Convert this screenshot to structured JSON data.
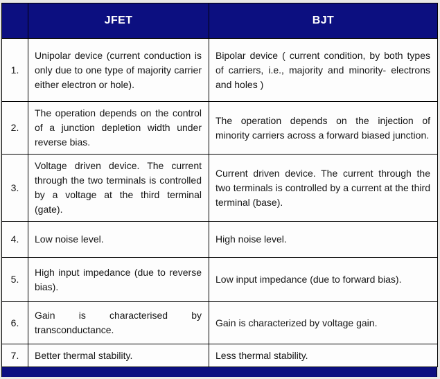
{
  "table": {
    "header": {
      "number_col_label": "",
      "jfet_label": "JFET",
      "bjt_label": "BJT",
      "bg_color": "#0c0f80",
      "text_color": "#ffffff"
    },
    "rows": [
      {
        "num": "1.",
        "jfet": "Unipolar device (current conduction is only due to one type of majority carrier either electron or hole).",
        "bjt": "Bipolar device ( current condition, by both types of carriers, i.e., majority and minority- electrons and holes )"
      },
      {
        "num": "2.",
        "jfet": "The operation depends on the control of a junction depletion width under reverse bias.",
        "bjt": "The operation depends on the injection of minority carriers across a forward biased junction."
      },
      {
        "num": "3.",
        "jfet": "Voltage driven device. The current through the two terminals is controlled by a voltage at the third terminal (gate).",
        "bjt": "Current driven device. The current through the two terminals is controlled by a current at the third terminal (base)."
      },
      {
        "num": "4.",
        "jfet": "Low noise level.",
        "bjt": "High noise level."
      },
      {
        "num": "5.",
        "jfet": "High input impedance (due to reverse bias).",
        "bjt": "Low input impedance (due to forward bias)."
      },
      {
        "num": "6.",
        "jfet": "Gain is characterised by transconductance.",
        "bjt": "Gain is characterized by voltage gain."
      },
      {
        "num": "7.",
        "jfet": "Better thermal stability.",
        "bjt": "Less thermal stability."
      }
    ],
    "footer_bar_color": "#0c0f80"
  }
}
